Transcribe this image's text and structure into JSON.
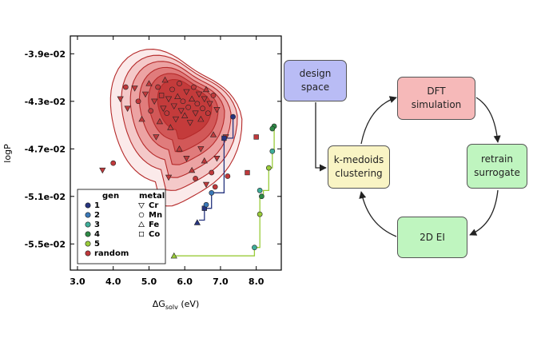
{
  "chart_data": {
    "type": "scatter",
    "xlabel_prefix": "ΔG",
    "xlabel_sub": "solv",
    "xlabel_suffix": " (eV)",
    "ylabel": "logP",
    "xlim": [
      2.8,
      8.7
    ],
    "ylim": [
      -0.0572,
      -0.0375
    ],
    "xticks": [
      {
        "v": 3.0,
        "label": "3.0"
      },
      {
        "v": 4.0,
        "label": "4.0"
      },
      {
        "v": 5.0,
        "label": "5.0"
      },
      {
        "v": 6.0,
        "label": "6.0"
      },
      {
        "v": 7.0,
        "label": "7.0"
      },
      {
        "v": 8.0,
        "label": "8.0"
      }
    ],
    "yticks": [
      {
        "v": -0.039,
        "label": "-3.9e-02"
      },
      {
        "v": -0.043,
        "label": "-4.3e-02"
      },
      {
        "v": -0.047,
        "label": "-4.7e-02"
      },
      {
        "v": -0.051,
        "label": "-5.1e-02"
      },
      {
        "v": -0.055,
        "label": "-5.5e-02"
      }
    ],
    "legend": {
      "gen_title": "gen",
      "metal_title": "metal",
      "gens": [
        {
          "label": "1",
          "color": "#26347f"
        },
        {
          "label": "2",
          "color": "#3a78b8"
        },
        {
          "label": "3",
          "color": "#3fae9a"
        },
        {
          "label": "4",
          "color": "#2e8a46"
        },
        {
          "label": "5",
          "color": "#9acc3a"
        },
        {
          "label": "random",
          "color": "#c0393b"
        }
      ],
      "metals": [
        {
          "label": "Cr",
          "marker": "tri-down"
        },
        {
          "label": "Mn",
          "marker": "circle"
        },
        {
          "label": "Fe",
          "marker": "tri-up"
        },
        {
          "label": "Co",
          "marker": "square"
        }
      ]
    },
    "density_contours": [
      {
        "level": 1,
        "cx": 5.65,
        "cy": -0.0445,
        "rx": 1.7,
        "ry": 0.0058
      },
      {
        "level": 2,
        "cx": 5.75,
        "cy": -0.0442,
        "rx": 1.5,
        "ry": 0.005
      },
      {
        "level": 3,
        "cx": 5.8,
        "cy": -0.044,
        "rx": 1.3,
        "ry": 0.0043
      },
      {
        "level": 4,
        "cx": 5.85,
        "cy": -0.0438,
        "rx": 1.1,
        "ry": 0.0036
      },
      {
        "level": 5,
        "cx": 5.9,
        "cy": -0.0436,
        "rx": 0.9,
        "ry": 0.0029
      },
      {
        "level": 6,
        "cx": 5.95,
        "cy": -0.0434,
        "rx": 0.7,
        "ry": 0.0022
      }
    ],
    "series": [
      {
        "name": "random",
        "points": [
          {
            "x": 3.7,
            "y": -0.0488,
            "m": "tri-down"
          },
          {
            "x": 4.0,
            "y": -0.0482,
            "m": "circle"
          },
          {
            "x": 4.2,
            "y": -0.0428,
            "m": "tri-down"
          },
          {
            "x": 4.35,
            "y": -0.0418,
            "m": "circle"
          },
          {
            "x": 4.4,
            "y": -0.0436,
            "m": "tri-down"
          },
          {
            "x": 4.6,
            "y": -0.0419,
            "m": "tri-down"
          },
          {
            "x": 4.7,
            "y": -0.043,
            "m": "circle"
          },
          {
            "x": 4.8,
            "y": -0.0445,
            "m": "tri-up"
          },
          {
            "x": 4.9,
            "y": -0.0424,
            "m": "tri-down"
          },
          {
            "x": 5.0,
            "y": -0.0415,
            "m": "tri-up"
          },
          {
            "x": 5.05,
            "y": -0.0438,
            "m": "circle"
          },
          {
            "x": 5.15,
            "y": -0.043,
            "m": "tri-down"
          },
          {
            "x": 5.2,
            "y": -0.046,
            "m": "tri-down"
          },
          {
            "x": 5.25,
            "y": -0.0418,
            "m": "circle"
          },
          {
            "x": 5.3,
            "y": -0.0447,
            "m": "tri-up"
          },
          {
            "x": 5.35,
            "y": -0.0425,
            "m": "square"
          },
          {
            "x": 5.4,
            "y": -0.0436,
            "m": "tri-down"
          },
          {
            "x": 5.45,
            "y": -0.0412,
            "m": "tri-up"
          },
          {
            "x": 5.5,
            "y": -0.044,
            "m": "circle"
          },
          {
            "x": 5.55,
            "y": -0.0428,
            "m": "tri-down"
          },
          {
            "x": 5.6,
            "y": -0.0452,
            "m": "tri-up"
          },
          {
            "x": 5.65,
            "y": -0.042,
            "m": "circle"
          },
          {
            "x": 5.7,
            "y": -0.0434,
            "m": "tri-down"
          },
          {
            "x": 5.75,
            "y": -0.0445,
            "m": "tri-down"
          },
          {
            "x": 5.8,
            "y": -0.0426,
            "m": "tri-up"
          },
          {
            "x": 5.85,
            "y": -0.0415,
            "m": "circle"
          },
          {
            "x": 5.9,
            "y": -0.0438,
            "m": "tri-down"
          },
          {
            "x": 5.95,
            "y": -0.043,
            "m": "circle"
          },
          {
            "x": 6.0,
            "y": -0.0442,
            "m": "tri-up"
          },
          {
            "x": 6.05,
            "y": -0.0422,
            "m": "tri-down"
          },
          {
            "x": 6.1,
            "y": -0.0435,
            "m": "circle"
          },
          {
            "x": 6.15,
            "y": -0.0448,
            "m": "tri-down"
          },
          {
            "x": 6.2,
            "y": -0.0428,
            "m": "tri-up"
          },
          {
            "x": 6.25,
            "y": -0.0418,
            "m": "circle"
          },
          {
            "x": 6.3,
            "y": -0.044,
            "m": "tri-down"
          },
          {
            "x": 6.35,
            "y": -0.0432,
            "m": "circle"
          },
          {
            "x": 6.4,
            "y": -0.0424,
            "m": "tri-down"
          },
          {
            "x": 6.45,
            "y": -0.0445,
            "m": "tri-up"
          },
          {
            "x": 6.5,
            "y": -0.0436,
            "m": "circle"
          },
          {
            "x": 6.55,
            "y": -0.0428,
            "m": "tri-down"
          },
          {
            "x": 6.6,
            "y": -0.042,
            "m": "tri-up"
          },
          {
            "x": 6.65,
            "y": -0.044,
            "m": "circle"
          },
          {
            "x": 6.7,
            "y": -0.0432,
            "m": "tri-down"
          },
          {
            "x": 6.8,
            "y": -0.0425,
            "m": "circle"
          },
          {
            "x": 6.9,
            "y": -0.0437,
            "m": "tri-down"
          },
          {
            "x": 5.85,
            "y": -0.047,
            "m": "tri-up"
          },
          {
            "x": 6.05,
            "y": -0.0478,
            "m": "tri-down"
          },
          {
            "x": 6.2,
            "y": -0.0488,
            "m": "tri-up"
          },
          {
            "x": 6.3,
            "y": -0.0495,
            "m": "circle"
          },
          {
            "x": 6.45,
            "y": -0.047,
            "m": "tri-down"
          },
          {
            "x": 6.55,
            "y": -0.048,
            "m": "tri-up"
          },
          {
            "x": 6.6,
            "y": -0.05,
            "m": "tri-down"
          },
          {
            "x": 6.75,
            "y": -0.049,
            "m": "circle"
          },
          {
            "x": 6.85,
            "y": -0.0502,
            "m": "circle"
          },
          {
            "x": 6.9,
            "y": -0.0478,
            "m": "tri-down"
          },
          {
            "x": 7.15,
            "y": -0.046,
            "m": "tri-down"
          },
          {
            "x": 7.2,
            "y": -0.0493,
            "m": "circle"
          },
          {
            "x": 7.75,
            "y": -0.049,
            "m": "square"
          },
          {
            "x": 8.0,
            "y": -0.046,
            "m": "square"
          },
          {
            "x": 5.55,
            "y": -0.0494,
            "m": "tri-down"
          },
          {
            "x": 6.8,
            "y": -0.0458,
            "m": "tri-up"
          }
        ]
      },
      {
        "name": "1",
        "points": [
          {
            "x": 7.35,
            "y": -0.0443,
            "m": "circle"
          },
          {
            "x": 7.1,
            "y": -0.0461,
            "m": "square"
          },
          {
            "x": 6.55,
            "y": -0.052,
            "m": "square"
          },
          {
            "x": 6.35,
            "y": -0.0532,
            "m": "tri-up"
          }
        ]
      },
      {
        "name": "2",
        "points": [
          {
            "x": 6.75,
            "y": -0.0507,
            "m": "circle"
          },
          {
            "x": 6.6,
            "y": -0.0517,
            "m": "circle"
          }
        ]
      },
      {
        "name": "3",
        "points": [
          {
            "x": 8.1,
            "y": -0.0505,
            "m": "circle"
          },
          {
            "x": 7.95,
            "y": -0.0553,
            "m": "circle"
          },
          {
            "x": 8.45,
            "y": -0.0472,
            "m": "circle"
          }
        ]
      },
      {
        "name": "4",
        "points": [
          {
            "x": 8.5,
            "y": -0.0451,
            "m": "circle"
          },
          {
            "x": 8.45,
            "y": -0.0453,
            "m": "circle"
          },
          {
            "x": 8.15,
            "y": -0.051,
            "m": "circle"
          }
        ]
      },
      {
        "name": "5",
        "points": [
          {
            "x": 8.35,
            "y": -0.0486,
            "m": "circle"
          },
          {
            "x": 8.1,
            "y": -0.0525,
            "m": "circle"
          },
          {
            "x": 5.7,
            "y": -0.056,
            "m": "tri-up"
          }
        ]
      }
    ],
    "trajectories": [
      {
        "color": "#26347f",
        "points": [
          [
            6.4,
            -0.053
          ],
          [
            6.55,
            -0.053
          ],
          [
            6.55,
            -0.052
          ],
          [
            6.75,
            -0.052
          ],
          [
            6.75,
            -0.0507
          ],
          [
            7.1,
            -0.0507
          ],
          [
            7.1,
            -0.0461
          ],
          [
            7.35,
            -0.0461
          ],
          [
            7.35,
            -0.0443
          ]
        ]
      },
      {
        "color": "#9acc3a",
        "points": [
          [
            5.7,
            -0.056
          ],
          [
            7.95,
            -0.056
          ],
          [
            7.95,
            -0.0553
          ],
          [
            8.1,
            -0.0553
          ],
          [
            8.1,
            -0.051
          ],
          [
            8.2,
            -0.051
          ],
          [
            8.2,
            -0.0505
          ],
          [
            8.35,
            -0.0505
          ],
          [
            8.35,
            -0.0486
          ],
          [
            8.45,
            -0.0486
          ],
          [
            8.45,
            -0.0472
          ],
          [
            8.5,
            -0.0472
          ],
          [
            8.5,
            -0.0451
          ]
        ]
      }
    ]
  },
  "flow": {
    "nodes": [
      {
        "id": "design-space",
        "label": "design\nspace",
        "color": "#b9bcf5"
      },
      {
        "id": "dft-simulation",
        "label": "DFT\nsimulation",
        "color": "#f6b9b9"
      },
      {
        "id": "retrain-surrogate",
        "label": "retrain\nsurrogate",
        "color": "#bff5bf"
      },
      {
        "id": "2d-ei",
        "label": "2D EI",
        "color": "#bff5bf"
      },
      {
        "id": "k-medoids-clustering",
        "label": "k-medoids\nclustering",
        "color": "#f9f4c4"
      }
    ]
  }
}
